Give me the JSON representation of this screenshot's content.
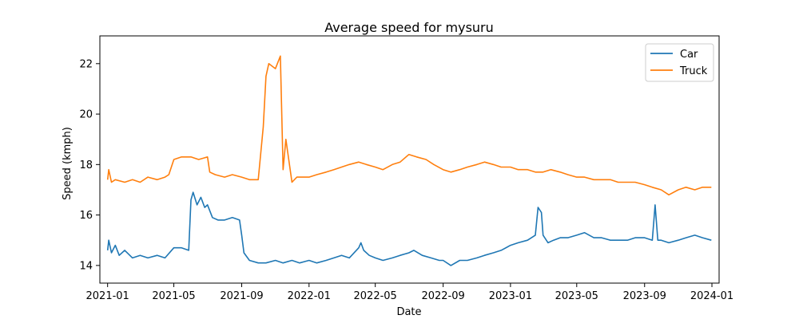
{
  "chart_data": {
    "type": "line",
    "title": "Average speed for mysuru",
    "xlabel": "Date",
    "ylabel": "Speed (kmph)",
    "x_type": "date",
    "xlim": [
      "2020-12-18",
      "2024-01-14"
    ],
    "ylim": [
      13.3,
      23.1
    ],
    "x_ticks": [
      "2021-01",
      "2021-05",
      "2021-09",
      "2022-01",
      "2022-05",
      "2022-09",
      "2023-01",
      "2023-05",
      "2023-09",
      "2024-01"
    ],
    "x_tick_dates": [
      "2021-01-01",
      "2021-05-01",
      "2021-09-01",
      "2022-01-01",
      "2022-05-01",
      "2022-09-01",
      "2023-01-01",
      "2023-05-01",
      "2023-09-01",
      "2024-01-01"
    ],
    "y_ticks": [
      14,
      16,
      18,
      20,
      22
    ],
    "grid": false,
    "legend_position": "top-right",
    "series": [
      {
        "name": "Car",
        "color": "#1f77b4",
        "x": [
          "2021-01-01",
          "2021-01-03",
          "2021-01-08",
          "2021-01-15",
          "2021-01-22",
          "2021-02-01",
          "2021-02-15",
          "2021-03-01",
          "2021-03-15",
          "2021-04-01",
          "2021-04-15",
          "2021-05-01",
          "2021-05-15",
          "2021-05-28",
          "2021-06-01",
          "2021-06-05",
          "2021-06-12",
          "2021-06-19",
          "2021-06-26",
          "2021-07-01",
          "2021-07-10",
          "2021-07-20",
          "2021-08-01",
          "2021-08-15",
          "2021-08-28",
          "2021-09-01",
          "2021-09-05",
          "2021-09-15",
          "2021-10-01",
          "2021-10-15",
          "2021-11-01",
          "2021-11-15",
          "2021-12-01",
          "2021-12-15",
          "2022-01-01",
          "2022-01-15",
          "2022-02-01",
          "2022-02-15",
          "2022-03-01",
          "2022-03-15",
          "2022-04-01",
          "2022-04-05",
          "2022-04-10",
          "2022-04-20",
          "2022-05-01",
          "2022-05-15",
          "2022-06-01",
          "2022-06-15",
          "2022-07-01",
          "2022-07-10",
          "2022-07-25",
          "2022-08-10",
          "2022-08-25",
          "2022-09-01",
          "2022-09-15",
          "2022-10-01",
          "2022-10-15",
          "2022-11-01",
          "2022-11-15",
          "2022-12-01",
          "2022-12-15",
          "2023-01-01",
          "2023-01-15",
          "2023-02-01",
          "2023-02-15",
          "2023-02-20",
          "2023-02-26",
          "2023-03-01",
          "2023-03-10",
          "2023-03-20",
          "2023-04-01",
          "2023-04-15",
          "2023-05-01",
          "2023-05-15",
          "2023-06-01",
          "2023-06-15",
          "2023-07-01",
          "2023-07-15",
          "2023-08-01",
          "2023-08-15",
          "2023-09-01",
          "2023-09-15",
          "2023-09-20",
          "2023-09-25",
          "2023-10-01",
          "2023-10-15",
          "2023-11-01",
          "2023-11-15",
          "2023-12-01",
          "2023-12-15",
          "2023-12-31"
        ],
        "y": [
          14.6,
          15.0,
          14.5,
          14.8,
          14.4,
          14.6,
          14.3,
          14.4,
          14.3,
          14.4,
          14.3,
          14.7,
          14.7,
          14.6,
          16.6,
          16.9,
          16.4,
          16.7,
          16.3,
          16.4,
          15.9,
          15.8,
          15.8,
          15.9,
          15.8,
          15.2,
          14.5,
          14.2,
          14.1,
          14.1,
          14.2,
          14.1,
          14.2,
          14.1,
          14.2,
          14.1,
          14.2,
          14.3,
          14.4,
          14.3,
          14.7,
          14.9,
          14.6,
          14.4,
          14.3,
          14.2,
          14.3,
          14.4,
          14.5,
          14.6,
          14.4,
          14.3,
          14.2,
          14.2,
          14.0,
          14.2,
          14.2,
          14.3,
          14.4,
          14.5,
          14.6,
          14.8,
          14.9,
          15.0,
          15.2,
          16.3,
          16.1,
          15.2,
          14.9,
          15.0,
          15.1,
          15.1,
          15.2,
          15.3,
          15.1,
          15.1,
          15.0,
          15.0,
          15.0,
          15.1,
          15.1,
          15.0,
          16.4,
          15.0,
          15.0,
          14.9,
          15.0,
          15.1,
          15.2,
          15.1,
          15.0
        ]
      },
      {
        "name": "Truck",
        "color": "#ff7f0e",
        "x": [
          "2021-01-01",
          "2021-01-03",
          "2021-01-08",
          "2021-01-15",
          "2021-02-01",
          "2021-02-15",
          "2021-03-01",
          "2021-03-15",
          "2021-04-01",
          "2021-04-15",
          "2021-04-22",
          "2021-05-01",
          "2021-05-15",
          "2021-06-01",
          "2021-06-15",
          "2021-07-01",
          "2021-07-05",
          "2021-07-15",
          "2021-08-01",
          "2021-08-15",
          "2021-09-01",
          "2021-09-15",
          "2021-10-01",
          "2021-10-10",
          "2021-10-15",
          "2021-10-20",
          "2021-11-01",
          "2021-11-10",
          "2021-11-15",
          "2021-11-20",
          "2021-12-01",
          "2021-12-10",
          "2022-01-01",
          "2022-01-15",
          "2022-02-01",
          "2022-02-15",
          "2022-03-01",
          "2022-03-15",
          "2022-04-01",
          "2022-04-15",
          "2022-05-01",
          "2022-05-15",
          "2022-06-01",
          "2022-06-15",
          "2022-07-01",
          "2022-07-15",
          "2022-08-01",
          "2022-08-15",
          "2022-09-01",
          "2022-09-15",
          "2022-10-01",
          "2022-10-15",
          "2022-11-01",
          "2022-11-15",
          "2022-12-01",
          "2022-12-15",
          "2023-01-01",
          "2023-01-15",
          "2023-02-01",
          "2023-02-15",
          "2023-03-01",
          "2023-03-15",
          "2023-04-01",
          "2023-04-15",
          "2023-05-01",
          "2023-05-15",
          "2023-06-01",
          "2023-06-15",
          "2023-07-01",
          "2023-07-15",
          "2023-08-01",
          "2023-08-15",
          "2023-09-01",
          "2023-09-15",
          "2023-10-01",
          "2023-10-15",
          "2023-11-01",
          "2023-11-15",
          "2023-12-01",
          "2023-12-15",
          "2023-12-31"
        ],
        "y": [
          17.4,
          17.8,
          17.3,
          17.4,
          17.3,
          17.4,
          17.3,
          17.5,
          17.4,
          17.5,
          17.6,
          18.2,
          18.3,
          18.3,
          18.2,
          18.3,
          17.7,
          17.6,
          17.5,
          17.6,
          17.5,
          17.4,
          17.4,
          19.5,
          21.5,
          22.0,
          21.8,
          22.3,
          17.8,
          19.0,
          17.3,
          17.5,
          17.5,
          17.6,
          17.7,
          17.8,
          17.9,
          18.0,
          18.1,
          18.0,
          17.9,
          17.8,
          18.0,
          18.1,
          18.4,
          18.3,
          18.2,
          18.0,
          17.8,
          17.7,
          17.8,
          17.9,
          18.0,
          18.1,
          18.0,
          17.9,
          17.9,
          17.8,
          17.8,
          17.7,
          17.7,
          17.8,
          17.7,
          17.6,
          17.5,
          17.5,
          17.4,
          17.4,
          17.4,
          17.3,
          17.3,
          17.3,
          17.2,
          17.1,
          17.0,
          16.8,
          17.0,
          17.1,
          17.0,
          17.1,
          17.1
        ]
      }
    ]
  }
}
